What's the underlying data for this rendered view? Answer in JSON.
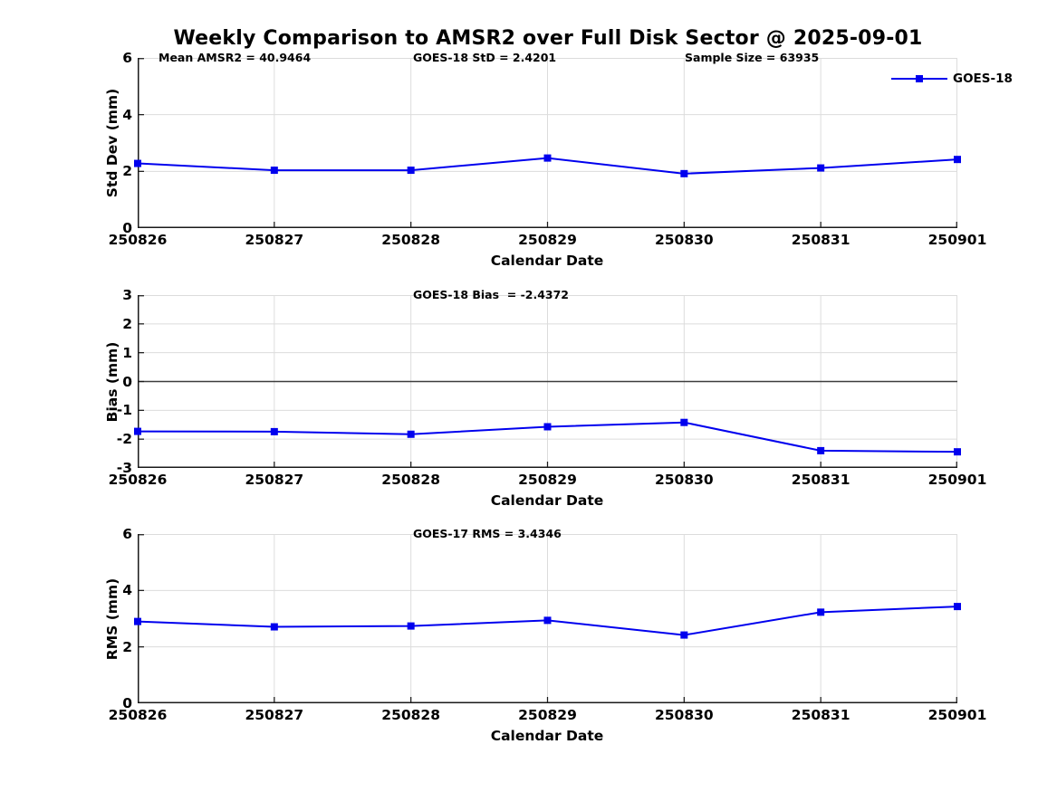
{
  "title": "Weekly Comparison to AMSR2 over Full Disk Sector @ 2025-09-01",
  "legend": {
    "label": "GOES-18"
  },
  "colors": {
    "series_line": "#0000ee",
    "grid": "#dcdcdc",
    "axis": "#1a1a1a",
    "zero_line": "#3d3d3d",
    "text": "#000000",
    "background": "#ffffff"
  },
  "chart_data": {
    "type": "line",
    "xlabel": "Calendar Date",
    "x_categories": [
      "250826",
      "250827",
      "250828",
      "250829",
      "250830",
      "250831",
      "250901"
    ],
    "legend_position": "top-right of first subplot",
    "grid": true,
    "subplots": [
      {
        "name": "std-dev",
        "ylabel": "Std Dev (mm)",
        "ylim": [
          0,
          6
        ],
        "yticks": [
          0,
          2,
          4,
          6
        ],
        "annotations": [
          "Mean AMSR2 = 40.9464",
          "GOES-18 StD = 2.4201",
          "Sample Size = 63935"
        ],
        "series": [
          {
            "name": "GOES-18",
            "values": [
              2.28,
              2.04,
              2.04,
              2.47,
              1.92,
              2.12,
              2.42
            ]
          }
        ]
      },
      {
        "name": "bias",
        "ylabel": "Bias (mm)",
        "ylim": [
          -3,
          3
        ],
        "yticks": [
          3,
          2,
          1,
          0,
          -1,
          -2,
          -3
        ],
        "zero_line": true,
        "annotations": [
          "GOES-18 Bias  = -2.4372"
        ],
        "series": [
          {
            "name": "GOES-18",
            "values": [
              -1.73,
              -1.74,
              -1.83,
              -1.57,
              -1.42,
              -2.4,
              -2.44
            ]
          }
        ]
      },
      {
        "name": "rms",
        "ylabel": "RMS (mm)",
        "ylim": [
          0,
          6
        ],
        "yticks": [
          0,
          2,
          4,
          6
        ],
        "annotations": [
          "GOES-17 RMS = 3.4346"
        ],
        "series": [
          {
            "name": "GOES-18",
            "values": [
              2.9,
              2.71,
              2.74,
              2.94,
              2.42,
              3.23,
              3.43
            ]
          }
        ]
      }
    ]
  }
}
